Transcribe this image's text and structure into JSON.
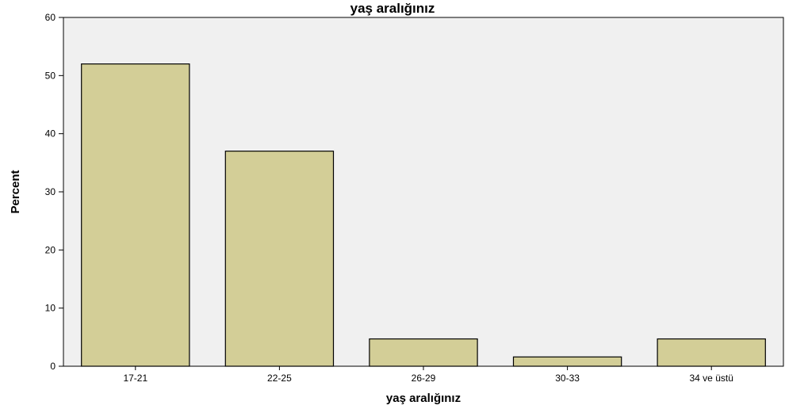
{
  "chart_data": {
    "type": "bar",
    "title": "yaş aralığınız",
    "xlabel": "yaş aralığınız",
    "ylabel": "Percent",
    "categories": [
      "17-21",
      "22-25",
      "26-29",
      "30-33",
      "34 ve üstü"
    ],
    "values": [
      52.0,
      37.0,
      4.7,
      1.6,
      4.7
    ],
    "ylim": [
      0,
      60
    ],
    "yticks": [
      "0",
      "10",
      "20",
      "30",
      "40",
      "50",
      "60"
    ],
    "grid": false,
    "colors": {
      "bar_fill": "#d3ce97",
      "bar_stroke": "#000000",
      "plot_background": "#f0f0f0"
    }
  }
}
